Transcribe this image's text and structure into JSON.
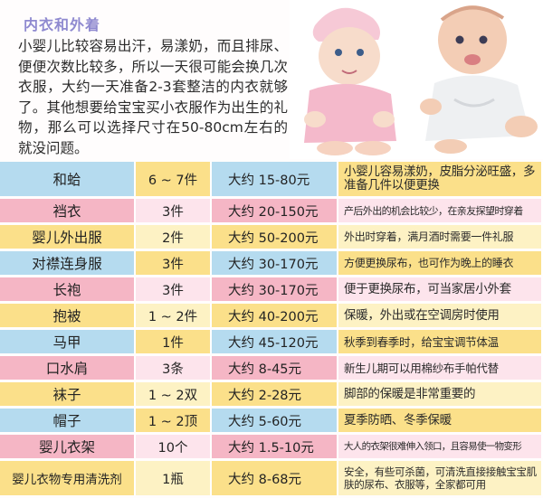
{
  "section": {
    "heading": "内衣和外着",
    "intro": "小婴儿比较容易出汗，易漾奶，而且排尿、便便次数比较多，所以一天很可能会换几次衣服，大约一天准备2-3套整洁的内衣就够了。其他想要给宝宝买小衣服作为出生的礼物，那么可以选择尺寸在50-80cm左右的就没问题。"
  },
  "colors": {
    "blue": "#b5dbef",
    "pink": "#f5b6c5",
    "yellow": "#fbe08a",
    "heading": "#8f8ad0"
  },
  "rows": [
    {
      "name": "和蛤",
      "qty": "6 ~ 7件",
      "price": "大约 15-80元",
      "note": "小婴儿容易漾奶，皮脂分泌旺盛，多准备几件以便更换",
      "style": "blue"
    },
    {
      "name": "裆衣",
      "qty": "3件",
      "price": "大约 20-150元",
      "note": "产后外出的机会比较少，在亲友探望时穿着",
      "style": "pink"
    },
    {
      "name": "婴儿外出服",
      "qty": "2件",
      "price": "大约 50-200元",
      "note": "外出时穿着，满月酒时需要一件礼服",
      "style": "yellow"
    },
    {
      "name": "对襟连身服",
      "qty": "3件",
      "price": "大约 30-170元",
      "note": "方便更换尿布，也可作为晚上的睡衣",
      "style": "blue"
    },
    {
      "name": "长袍",
      "qty": "3件",
      "price": "大约 30-170元",
      "note": "便于更换尿布，可当家居小外套",
      "style": "pink"
    },
    {
      "name": "抱被",
      "qty": "1 ~ 2件",
      "price": "大约 40-200元",
      "note": "保暖，外出或在空调房时使用",
      "style": "yellow"
    },
    {
      "name": "马甲",
      "qty": "1件",
      "price": "大约 45-120元",
      "note": "秋季到春季时，给宝宝调节体温",
      "style": "blue"
    },
    {
      "name": "口水肩",
      "qty": "3条",
      "price": "大约 8-45元",
      "note": "新生儿期可以用棉纱布手帕代替",
      "style": "pink"
    },
    {
      "name": "袜子",
      "qty": "1 ~ 2双",
      "price": "大约 2-28元",
      "note": "脚部的保暖是非常重要的",
      "style": "yellow"
    },
    {
      "name": "帽子",
      "qty": "1 ~ 2顶",
      "price": "大约 5-60元",
      "note": "夏季防晒、冬季保暖",
      "style": "blue"
    },
    {
      "name": "婴儿衣架",
      "qty": "10个",
      "price": "大约 1.5-10元",
      "note": "大人的衣架很难伸入领口，且容易使一物变形",
      "style": "pink"
    },
    {
      "name": "婴儿衣物专用清洗剂",
      "qty": "1瓶",
      "price": "大约 8-68元",
      "note": "安全，有些可杀菌，可清洗直接接触宝宝肌肤的尿布、衣服等，全家都可用",
      "style": "yellow"
    }
  ]
}
